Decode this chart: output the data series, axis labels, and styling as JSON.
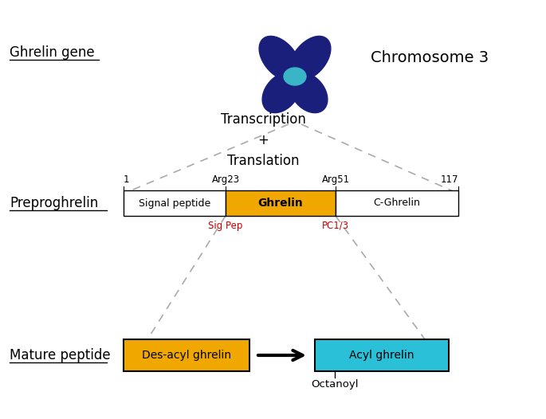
{
  "bg_color": "#ffffff",
  "label_ghrelin_gene": "Ghrelin gene",
  "label_chromosome": "Chromosome 3",
  "label_transcription": "Transcription\n+\nTranslation",
  "label_preproghrelin": "Preproghrelin",
  "label_mature_peptide": "Mature peptide",
  "pos1_label": "1",
  "pos117_label": "117",
  "arg23_label": "Arg23",
  "arg51_label": "Arg51",
  "sig_pep_label": "Sig Pep",
  "pc13_label": "PC1/3",
  "cleavage_label_color": "#cc0000",
  "box_signal_label": "Signal peptide",
  "box_ghrelin_label": "Ghrelin",
  "box_cghrelin_label": "C-Ghrelin",
  "box_desacyl_label": "Des-acyl ghrelin",
  "box_acyl_label": "Acyl ghrelin",
  "octanoyl_label": "Octanoyl",
  "color_gold": "#F0A800",
  "color_cyan": "#29C0D8",
  "color_white": "#ffffff",
  "color_black": "#000000",
  "color_dashed": "#aaaaaa",
  "color_dark_navy": "#1a1f7c",
  "color_teal_centromere": "#3ab5c8"
}
